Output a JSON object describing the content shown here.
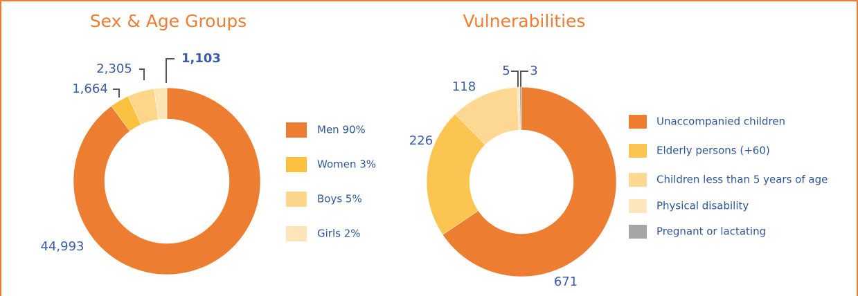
{
  "chart_data": [
    {
      "type": "pie",
      "title": "Sex & Age Groups",
      "categories": [
        "Men 90%",
        "Women 3%",
        "Boys 5%",
        "Girls 2%"
      ],
      "values": [
        44993,
        1664,
        2305,
        1103
      ],
      "value_labels": [
        "44,993",
        "1,664",
        "2,305",
        "1,103"
      ],
      "colors": [
        "#ed7d31",
        "#fbc140",
        "#fdd68a",
        "#fee5b8"
      ]
    },
    {
      "type": "pie",
      "title": "Vulnerabilities",
      "categories": [
        "Unaccompanied children",
        "Elderly persons (+60)",
        "Children less than 5 years of age",
        "Physical disability",
        "Pregnant or lactating"
      ],
      "values": [
        671,
        226,
        118,
        5,
        3
      ],
      "colors": [
        "#ed7d31",
        "#fcc552",
        "#fdd893",
        "#fee6bc",
        "#a6a6a6"
      ]
    }
  ]
}
